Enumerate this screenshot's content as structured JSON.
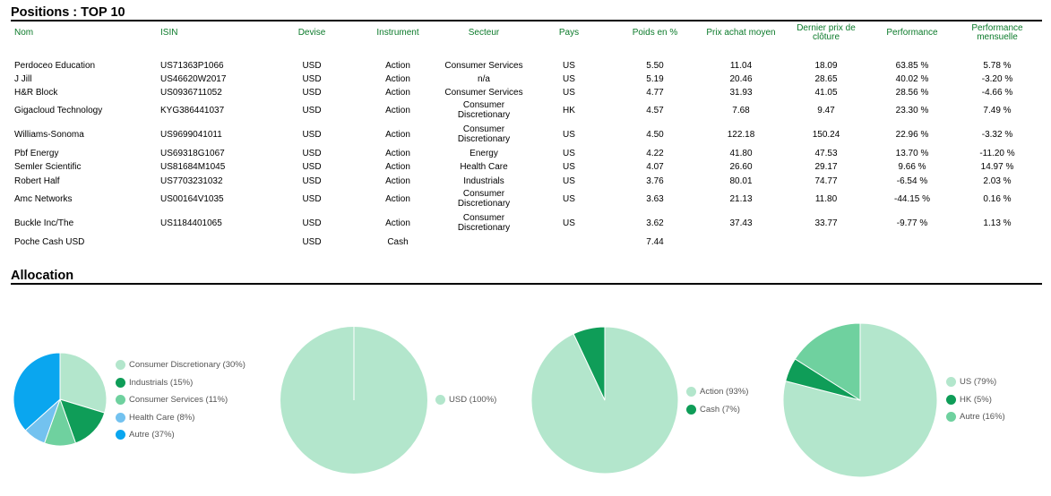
{
  "positions": {
    "title": "Positions : TOP 10",
    "headers": {
      "nom": "Nom",
      "isin": "ISIN",
      "devise": "Devise",
      "instrument": "Instrument",
      "secteur": "Secteur",
      "pays": "Pays",
      "poids": "Poids en %",
      "prix_achat": "Prix achat moyen",
      "dernier_prix": "Dernier prix de clôture",
      "performance": "Performance",
      "perf_mensuelle": "Performance mensuelle"
    },
    "rows": [
      {
        "nom": "Perdoceo Education",
        "isin": "US71363P1066",
        "devise": "USD",
        "instrument": "Action",
        "secteur": "Consumer Services",
        "pays": "US",
        "poids": "5.50",
        "prix_achat": "11.04",
        "dernier_prix": "18.09",
        "performance": "63.85 %",
        "perf_mensuelle": "5.78 %"
      },
      {
        "nom": "J Jill",
        "isin": "US46620W2017",
        "devise": "USD",
        "instrument": "Action",
        "secteur": "n/a",
        "pays": "US",
        "poids": "5.19",
        "prix_achat": "20.46",
        "dernier_prix": "28.65",
        "performance": "40.02 %",
        "perf_mensuelle": "-3.20 %"
      },
      {
        "nom": "H&R Block",
        "isin": "US0936711052",
        "devise": "USD",
        "instrument": "Action",
        "secteur": "Consumer Services",
        "pays": "US",
        "poids": "4.77",
        "prix_achat": "31.93",
        "dernier_prix": "41.05",
        "performance": "28.56 %",
        "perf_mensuelle": "-4.66 %"
      },
      {
        "nom": "Gigacloud Technology",
        "isin": "KYG386441037",
        "devise": "USD",
        "instrument": "Action",
        "secteur": "Consumer Discretionary",
        "pays": "HK",
        "poids": "4.57",
        "prix_achat": "7.68",
        "dernier_prix": "9.47",
        "performance": "23.30 %",
        "perf_mensuelle": "7.49 %"
      },
      {
        "nom": "Williams-Sonoma",
        "isin": "US9699041011",
        "devise": "USD",
        "instrument": "Action",
        "secteur": "Consumer Discretionary",
        "pays": "US",
        "poids": "4.50",
        "prix_achat": "122.18",
        "dernier_prix": "150.24",
        "performance": "22.96 %",
        "perf_mensuelle": "-3.32 %"
      },
      {
        "nom": "Pbf Energy",
        "isin": "US69318G1067",
        "devise": "USD",
        "instrument": "Action",
        "secteur": "Energy",
        "pays": "US",
        "poids": "4.22",
        "prix_achat": "41.80",
        "dernier_prix": "47.53",
        "performance": "13.70 %",
        "perf_mensuelle": "-11.20 %"
      },
      {
        "nom": "Semler Scientific",
        "isin": "US81684M1045",
        "devise": "USD",
        "instrument": "Action",
        "secteur": "Health Care",
        "pays": "US",
        "poids": "4.07",
        "prix_achat": "26.60",
        "dernier_prix": "29.17",
        "performance": "9.66 %",
        "perf_mensuelle": "14.97 %"
      },
      {
        "nom": "Robert Half",
        "isin": "US7703231032",
        "devise": "USD",
        "instrument": "Action",
        "secteur": "Industrials",
        "pays": "US",
        "poids": "3.76",
        "prix_achat": "80.01",
        "dernier_prix": "74.77",
        "performance": "-6.54 %",
        "perf_mensuelle": "2.03 %"
      },
      {
        "nom": "Amc Networks",
        "isin": "US00164V1035",
        "devise": "USD",
        "instrument": "Action",
        "secteur": "Consumer Discretionary",
        "pays": "US",
        "poids": "3.63",
        "prix_achat": "21.13",
        "dernier_prix": "11.80",
        "performance": "-44.15 %",
        "perf_mensuelle": "0.16 %"
      },
      {
        "nom": "Buckle Inc/The",
        "isin": "US1184401065",
        "devise": "USD",
        "instrument": "Action",
        "secteur": "Consumer Discretionary",
        "pays": "US",
        "poids": "3.62",
        "prix_achat": "37.43",
        "dernier_prix": "33.77",
        "performance": "-9.77 %",
        "perf_mensuelle": "1.13 %"
      },
      {
        "nom": "Poche Cash USD",
        "isin": "",
        "devise": "USD",
        "instrument": "Cash",
        "secteur": "",
        "pays": "",
        "poids": "7.44",
        "prix_achat": "",
        "dernier_prix": "",
        "performance": "",
        "perf_mensuelle": ""
      }
    ]
  },
  "allocation": {
    "title": "Allocation"
  },
  "chart_data": [
    {
      "type": "pie",
      "labels": [
        "Consumer Discretionary (30%)",
        "Industrials (15%)",
        "Consumer Services (11%)",
        "Health Care (8%)",
        "Autre (37%)"
      ],
      "values": [
        30,
        15,
        11,
        8,
        37
      ],
      "colors": [
        "#b3e6cc",
        "#0f9d58",
        "#6fd19f",
        "#73c2ef",
        "#0aa6ef"
      ],
      "legend": "right"
    },
    {
      "type": "pie",
      "labels": [
        "USD (100%)"
      ],
      "values": [
        100
      ],
      "colors": [
        "#b3e6cc"
      ],
      "legend": "right"
    },
    {
      "type": "pie",
      "labels": [
        "Action (93%)",
        "Cash (7%)"
      ],
      "values": [
        93,
        7
      ],
      "colors": [
        "#b3e6cc",
        "#0f9d58"
      ],
      "legend": "right"
    },
    {
      "type": "pie",
      "labels": [
        "US (79%)",
        "HK (5%)",
        "Autre (16%)"
      ],
      "values": [
        79,
        5,
        16
      ],
      "colors": [
        "#b3e6cc",
        "#0f9d58",
        "#6fd19f"
      ],
      "legend": "right"
    }
  ]
}
